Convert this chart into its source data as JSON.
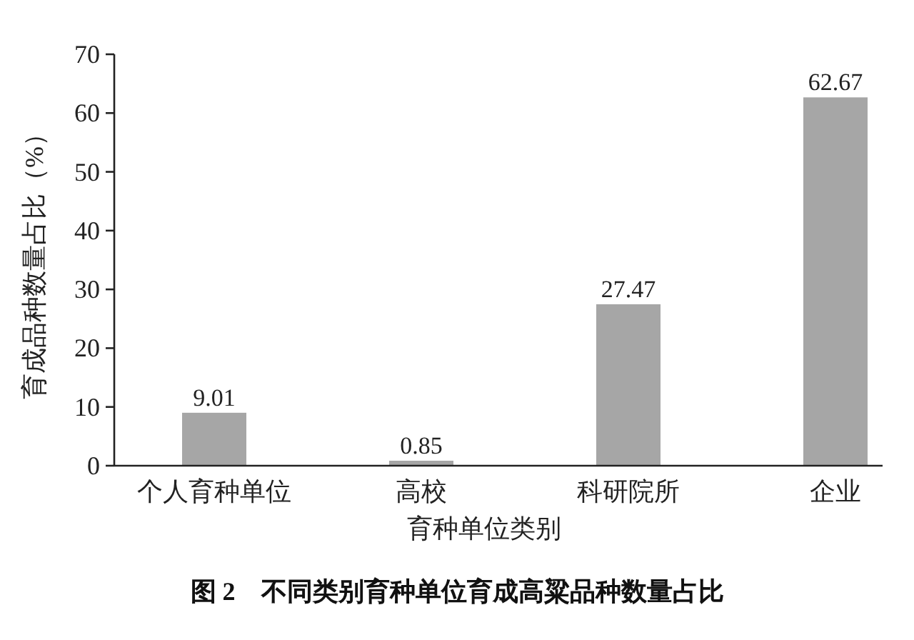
{
  "chart_data": {
    "type": "bar",
    "title": "图 2　不同类别育种单位育成高粱品种数量占比",
    "xlabel": "育种单位类别",
    "ylabel": "育成品种数量占比（%）",
    "categories": [
      "个人育种单位",
      "高校",
      "科研院所",
      "企业"
    ],
    "values": [
      9.01,
      0.85,
      27.47,
      62.67
    ],
    "color": "#a6a6a6",
    "ylim": [
      0,
      70
    ],
    "yticks": [
      0,
      10,
      20,
      30,
      40,
      50,
      60,
      70
    ],
    "data_labels": true
  }
}
